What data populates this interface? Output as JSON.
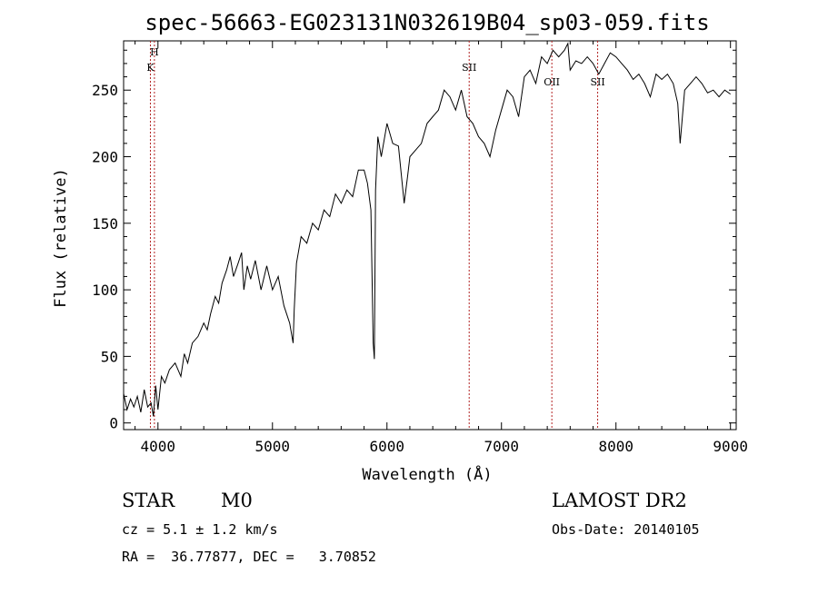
{
  "chart_data": {
    "type": "line",
    "title": "spec-56663-EG023131N032619B04_sp03-059.fits",
    "xlabel": "Wavelength (Å)",
    "ylabel": "Flux (relative)",
    "xlim": [
      3700,
      9050
    ],
    "ylim": [
      -5,
      287
    ],
    "xticks": [
      4000,
      5000,
      6000,
      7000,
      8000,
      9000
    ],
    "yticks": [
      0,
      50,
      100,
      150,
      200,
      250
    ],
    "series": [
      {
        "color": "#000000",
        "x": [
          3700,
          3730,
          3760,
          3790,
          3820,
          3850,
          3880,
          3910,
          3940,
          3960,
          3980,
          4000,
          4030,
          4060,
          4100,
          4150,
          4200,
          4230,
          4260,
          4300,
          4350,
          4400,
          4430,
          4460,
          4500,
          4530,
          4560,
          4600,
          4630,
          4660,
          4700,
          4730,
          4750,
          4780,
          4810,
          4850,
          4900,
          4950,
          5000,
          5050,
          5100,
          5150,
          5180,
          5190,
          5210,
          5250,
          5300,
          5350,
          5400,
          5450,
          5500,
          5550,
          5600,
          5650,
          5700,
          5750,
          5800,
          5830,
          5860,
          5880,
          5890,
          5900,
          5920,
          5950,
          6000,
          6050,
          6100,
          6150,
          6180,
          6200,
          6250,
          6300,
          6350,
          6400,
          6450,
          6500,
          6550,
          6600,
          6650,
          6700,
          6750,
          6800,
          6850,
          6900,
          6950,
          7000,
          7050,
          7100,
          7150,
          7200,
          7250,
          7300,
          7350,
          7400,
          7450,
          7500,
          7550,
          7580,
          7600,
          7650,
          7700,
          7750,
          7800,
          7850,
          7900,
          7950,
          8000,
          8050,
          8100,
          8150,
          8200,
          8250,
          8300,
          8350,
          8400,
          8450,
          8500,
          8540,
          8560,
          8600,
          8650,
          8700,
          8750,
          8800,
          8850,
          8900,
          8950,
          9000
        ],
        "y": [
          22,
          10,
          18,
          12,
          20,
          8,
          25,
          12,
          15,
          5,
          28,
          10,
          35,
          30,
          40,
          45,
          35,
          52,
          45,
          60,
          65,
          75,
          70,
          82,
          95,
          90,
          105,
          115,
          125,
          110,
          120,
          128,
          100,
          118,
          108,
          122,
          100,
          118,
          100,
          110,
          88,
          75,
          60,
          85,
          120,
          140,
          135,
          150,
          145,
          160,
          155,
          172,
          165,
          175,
          170,
          190,
          190,
          180,
          160,
          60,
          48,
          175,
          215,
          200,
          225,
          210,
          208,
          165,
          185,
          200,
          205,
          210,
          225,
          230,
          235,
          250,
          245,
          235,
          250,
          230,
          225,
          215,
          210,
          200,
          220,
          235,
          250,
          245,
          230,
          260,
          265,
          255,
          275,
          270,
          280,
          275,
          280,
          285,
          265,
          272,
          270,
          275,
          270,
          262,
          270,
          278,
          275,
          270,
          265,
          258,
          262,
          255,
          245,
          262,
          258,
          262,
          255,
          240,
          210,
          250,
          255,
          260,
          255,
          248,
          250,
          245,
          250,
          247
        ]
      }
    ],
    "lines": [
      {
        "label": "K",
        "x": 3934
      },
      {
        "label": "H",
        "x": 3969
      },
      {
        "label": "SII",
        "x": 6718
      },
      {
        "label": "OII",
        "x": 7440
      },
      {
        "label": "SII",
        "x": 7840
      }
    ]
  },
  "info": {
    "class": "STAR",
    "subclass": "M0",
    "survey": "LAMOST DR2",
    "cz": "cz = 5.1 ± 1.2 km/s",
    "obs_date": "Obs-Date: 20140105",
    "radec": "RA =  36.77877, DEC =   3.70852"
  }
}
